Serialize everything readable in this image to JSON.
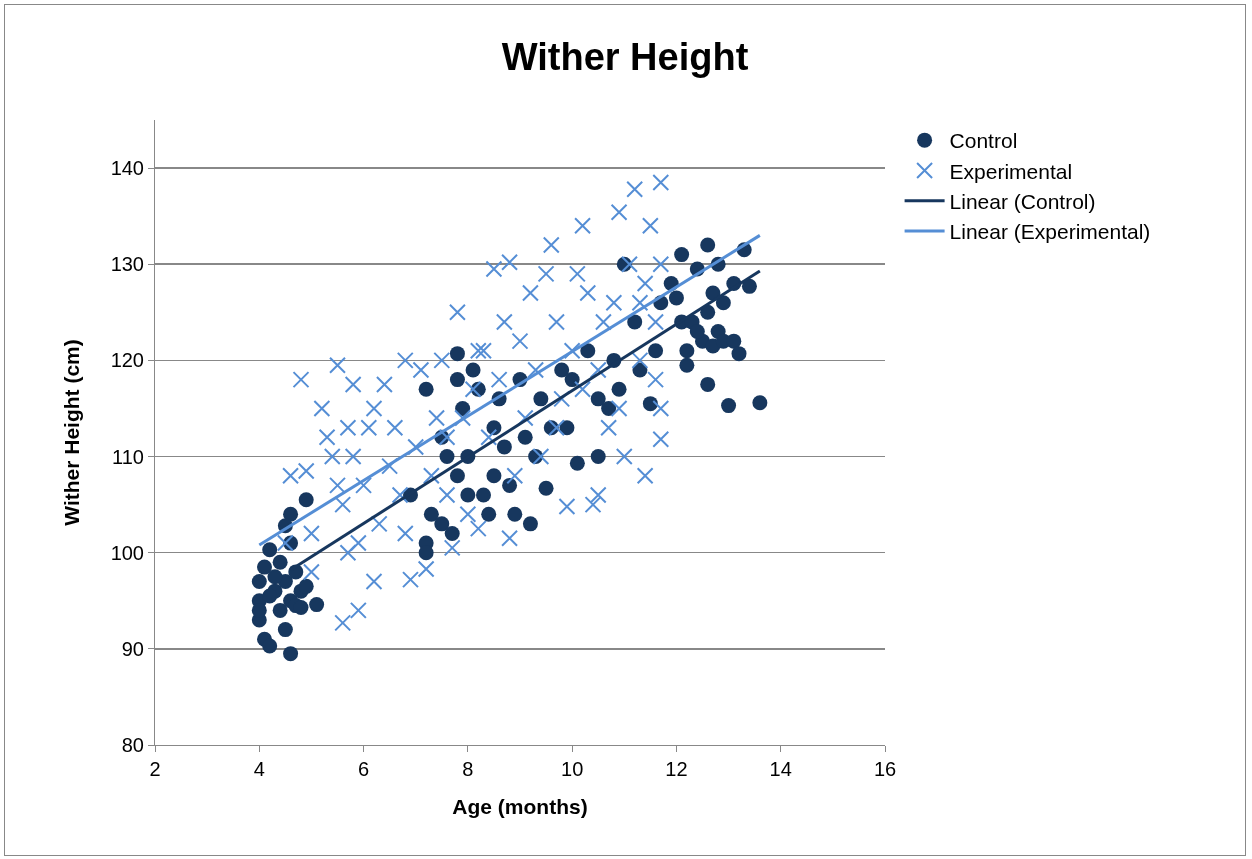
{
  "chart_data": {
    "type": "scatter",
    "title": "Wither Height",
    "xlabel": "Age (months)",
    "ylabel": "Wither Height (cm)",
    "xlim": [
      2,
      16
    ],
    "xticks": [
      2,
      4,
      6,
      8,
      10,
      12,
      14,
      16
    ],
    "ylim": [
      80,
      145
    ],
    "yticks": [
      80,
      90,
      100,
      110,
      120,
      130,
      140
    ],
    "grid": "y",
    "legend": "right",
    "series": [
      {
        "name": "Control",
        "color": "#17375e",
        "marker": "circle",
        "x": [
          4.0,
          4.0,
          4.0,
          4.0,
          4.1,
          4.2,
          4.1,
          4.2,
          4.3,
          4.4,
          4.4,
          4.5,
          4.5,
          4.6,
          4.6,
          4.6,
          4.6,
          4.5,
          4.7,
          4.7,
          4.8,
          4.9,
          4.9,
          5.1,
          4.3,
          4.2,
          4.8,
          6.9,
          7.2,
          7.2,
          7.2,
          7.3,
          7.5,
          7.5,
          7.6,
          7.7,
          7.8,
          7.8,
          7.8,
          7.9,
          8.0,
          8.0,
          8.1,
          8.2,
          8.3,
          8.4,
          8.5,
          8.5,
          8.6,
          8.7,
          8.8,
          8.9,
          9.0,
          9.1,
          9.2,
          9.3,
          9.4,
          9.5,
          9.6,
          9.8,
          9.9,
          10.0,
          10.1,
          10.3,
          10.5,
          10.5,
          10.7,
          10.8,
          10.9,
          11.0,
          11.2,
          11.3,
          11.5,
          11.6,
          11.7,
          11.9,
          12.1,
          12.0,
          12.1,
          12.2,
          12.2,
          12.3,
          12.4,
          12.5,
          12.6,
          12.6,
          12.6,
          12.7,
          12.7,
          12.8,
          12.8,
          12.9,
          12.9,
          13.0,
          13.1,
          13.1,
          13.2,
          13.3,
          13.4,
          13.6,
          12.4
        ],
        "values": [
          97,
          95,
          93,
          94,
          91,
          90.3,
          98.5,
          100.3,
          96,
          94,
          99,
          92,
          97,
          89.5,
          95,
          101,
          104,
          102.8,
          98,
          94.5,
          96,
          96.5,
          105.5,
          94.6,
          97.5,
          95.5,
          94.3,
          106,
          101,
          100,
          117,
          104,
          103,
          112,
          110,
          102,
          120.7,
          118,
          108,
          115,
          110,
          106,
          119,
          117,
          106,
          104,
          113,
          108,
          116,
          111,
          107,
          104,
          118,
          112,
          103,
          110,
          116,
          106.7,
          113,
          119,
          113,
          118,
          109.3,
          121,
          116,
          110,
          115,
          120,
          117,
          130,
          124,
          119,
          115.5,
          121,
          126,
          128,
          131,
          126.5,
          124,
          121,
          119.5,
          124,
          129.5,
          122,
          132,
          117.5,
          125,
          127,
          121.5,
          130,
          123,
          126,
          122,
          115.3,
          128,
          122,
          120.7,
          131.5,
          127.7,
          115.6,
          123
        ]
      },
      {
        "name": "Experimental",
        "color": "#558ed5",
        "marker": "cross",
        "x": [
          4.5,
          4.6,
          4.8,
          4.9,
          5.0,
          5.0,
          5.2,
          5.3,
          5.4,
          5.5,
          5.5,
          5.6,
          5.6,
          5.7,
          5.7,
          5.8,
          5.8,
          5.9,
          5.9,
          6.0,
          6.1,
          6.2,
          6.2,
          6.3,
          6.4,
          6.5,
          6.6,
          6.7,
          6.8,
          6.8,
          6.9,
          7.0,
          7.1,
          7.2,
          7.3,
          7.4,
          7.5,
          7.6,
          7.7,
          7.8,
          7.9,
          8.0,
          8.1,
          8.2,
          8.3,
          8.4,
          8.5,
          8.6,
          8.7,
          8.8,
          8.9,
          9.0,
          9.1,
          9.2,
          9.3,
          9.4,
          9.5,
          9.6,
          9.7,
          9.8,
          9.9,
          10.0,
          10.1,
          10.2,
          10.3,
          10.4,
          10.5,
          10.5,
          10.6,
          10.7,
          10.8,
          10.9,
          11.0,
          11.1,
          11.2,
          11.3,
          11.4,
          11.4,
          11.5,
          11.6,
          11.7,
          11.7,
          11.7,
          11.7,
          11.6,
          11.3,
          10.9,
          10.2,
          9.7,
          8.8,
          8.2,
          7.6
        ],
        "values": [
          101,
          108,
          118,
          108.5,
          102,
          98,
          115,
          112,
          110,
          119.5,
          107,
          92.7,
          105,
          113,
          100,
          117.5,
          110,
          94,
          101,
          107,
          113,
          97,
          115,
          103,
          117.5,
          109,
          113,
          106,
          120,
          102,
          97.2,
          111,
          119,
          98.3,
          108,
          114,
          120,
          106,
          100.5,
          125,
          114,
          104,
          117,
          102.5,
          121,
          112,
          129.5,
          118,
          124,
          130.2,
          108,
          122,
          114,
          127,
          119,
          110,
          129,
          132,
          124,
          116,
          104.8,
          121,
          129,
          134,
          127,
          105,
          106,
          119,
          124,
          113,
          126,
          135.4,
          110,
          130,
          137.8,
          120,
          108,
          128,
          134,
          124,
          138.5,
          130,
          115,
          111.8,
          118,
          126,
          115,
          117,
          113,
          101.5,
          121,
          112
        ]
      },
      {
        "name": "Linear (Control)",
        "type": "line",
        "color": "#17375e",
        "marker": "none",
        "line_style": "solid",
        "x": [
          4.6,
          13.6
        ],
        "values": [
          98.2,
          129.3
        ]
      },
      {
        "name": "Linear (Experimental)",
        "type": "line",
        "color": "#558ed5",
        "marker": "none",
        "line_style": "solid",
        "x": [
          4.0,
          13.6
        ],
        "values": [
          100.8,
          133.0
        ]
      }
    ]
  }
}
